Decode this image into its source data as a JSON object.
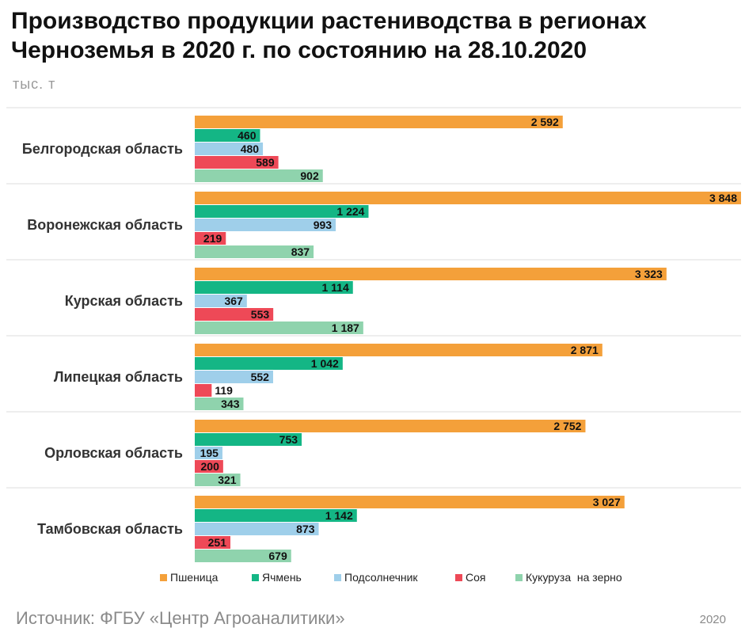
{
  "title": "Производство продукции растениводства в регионах Черноземья в 2020 г. по состоянию на 28.10.2020",
  "unit_label": "тыс. т",
  "source": "Источник: ФГБУ «Центр Агроаналитики»",
  "year_note": "2020",
  "colors": {
    "wheat": "#F4A03A",
    "barley": "#14B685",
    "sunflower": "#9FCFEA",
    "soy": "#EE4957",
    "corn": "#8FD3AD",
    "separator": "#DDDDDD"
  },
  "chart_data": {
    "type": "bar",
    "orientation": "horizontal",
    "categories": [
      "Белгородская область",
      "Воронежская область",
      "Курская область",
      "Липецкая область",
      "Орловская область",
      "Тамбовская область"
    ],
    "series": [
      {
        "name": "Пшеница",
        "color": "#F4A03A",
        "values": [
          2592,
          3848,
          3323,
          2871,
          2752,
          3027
        ],
        "labels": [
          "2 592",
          "3 848",
          "3 323",
          "2 871",
          "2 752",
          "3 027"
        ]
      },
      {
        "name": "Ячмень",
        "color": "#14B685",
        "values": [
          460,
          1224,
          1114,
          1042,
          753,
          1142
        ],
        "labels": [
          "460",
          "1 224",
          "1 114",
          "1 042",
          "753",
          "1 142"
        ]
      },
      {
        "name": "Подсолнечник",
        "color": "#9FCFEA",
        "values": [
          480,
          993,
          367,
          552,
          195,
          873
        ],
        "labels": [
          "480",
          "993",
          "367",
          "552",
          "195",
          "873"
        ]
      },
      {
        "name": "Соя",
        "color": "#EE4957",
        "values": [
          589,
          219,
          553,
          119,
          200,
          251
        ],
        "labels": [
          "589",
          "219",
          "553",
          "119",
          "200",
          "251"
        ]
      },
      {
        "name": "Кукуруза  на зерно",
        "color": "#8FD3AD",
        "values": [
          902,
          837,
          1187,
          343,
          321,
          679
        ],
        "labels": [
          "902",
          "837",
          "1 187",
          "343",
          "321",
          "679"
        ]
      }
    ],
    "xlim": [
      0,
      3848
    ],
    "grid": false,
    "legend": "bottom"
  }
}
